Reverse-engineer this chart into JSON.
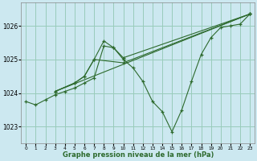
{
  "title": "Graphe pression niveau de la mer (hPa)",
  "background_color": "#cce8f0",
  "grid_color": "#99ccbb",
  "line_color": "#2d6a2d",
  "xlim": [
    -0.5,
    23.5
  ],
  "ylim": [
    1022.5,
    1026.7
  ],
  "yticks": [
    1023,
    1024,
    1025,
    1026
  ],
  "xticks": [
    0,
    1,
    2,
    3,
    4,
    5,
    6,
    7,
    8,
    9,
    10,
    11,
    12,
    13,
    14,
    15,
    16,
    17,
    18,
    19,
    20,
    21,
    22,
    23
  ],
  "series": [
    {
      "x": [
        0,
        1,
        2,
        3,
        4,
        5,
        6,
        7,
        8,
        9,
        10,
        11,
        12,
        13,
        14,
        15,
        16,
        17,
        18,
        19,
        20,
        21,
        22,
        23
      ],
      "y": [
        1023.75,
        1023.65,
        1023.8,
        1023.95,
        1024.05,
        1024.15,
        1024.3,
        1024.45,
        1025.4,
        1025.35,
        1025.0,
        1024.75,
        1024.35,
        1023.75,
        1023.45,
        1022.85,
        1023.5,
        1024.35,
        1025.15,
        1025.65,
        1025.95,
        1026.0,
        1026.05,
        1026.35
      ]
    },
    {
      "x": [
        3,
        5,
        6,
        7,
        8,
        9,
        10,
        23
      ],
      "y": [
        1024.05,
        1024.3,
        1024.5,
        1025.0,
        1025.55,
        1025.35,
        1025.05,
        1026.35
      ]
    },
    {
      "x": [
        3,
        5,
        6,
        7,
        10,
        23
      ],
      "y": [
        1024.05,
        1024.3,
        1024.5,
        1025.0,
        1024.9,
        1026.35
      ]
    },
    {
      "x": [
        3,
        23
      ],
      "y": [
        1024.05,
        1026.35
      ]
    }
  ]
}
